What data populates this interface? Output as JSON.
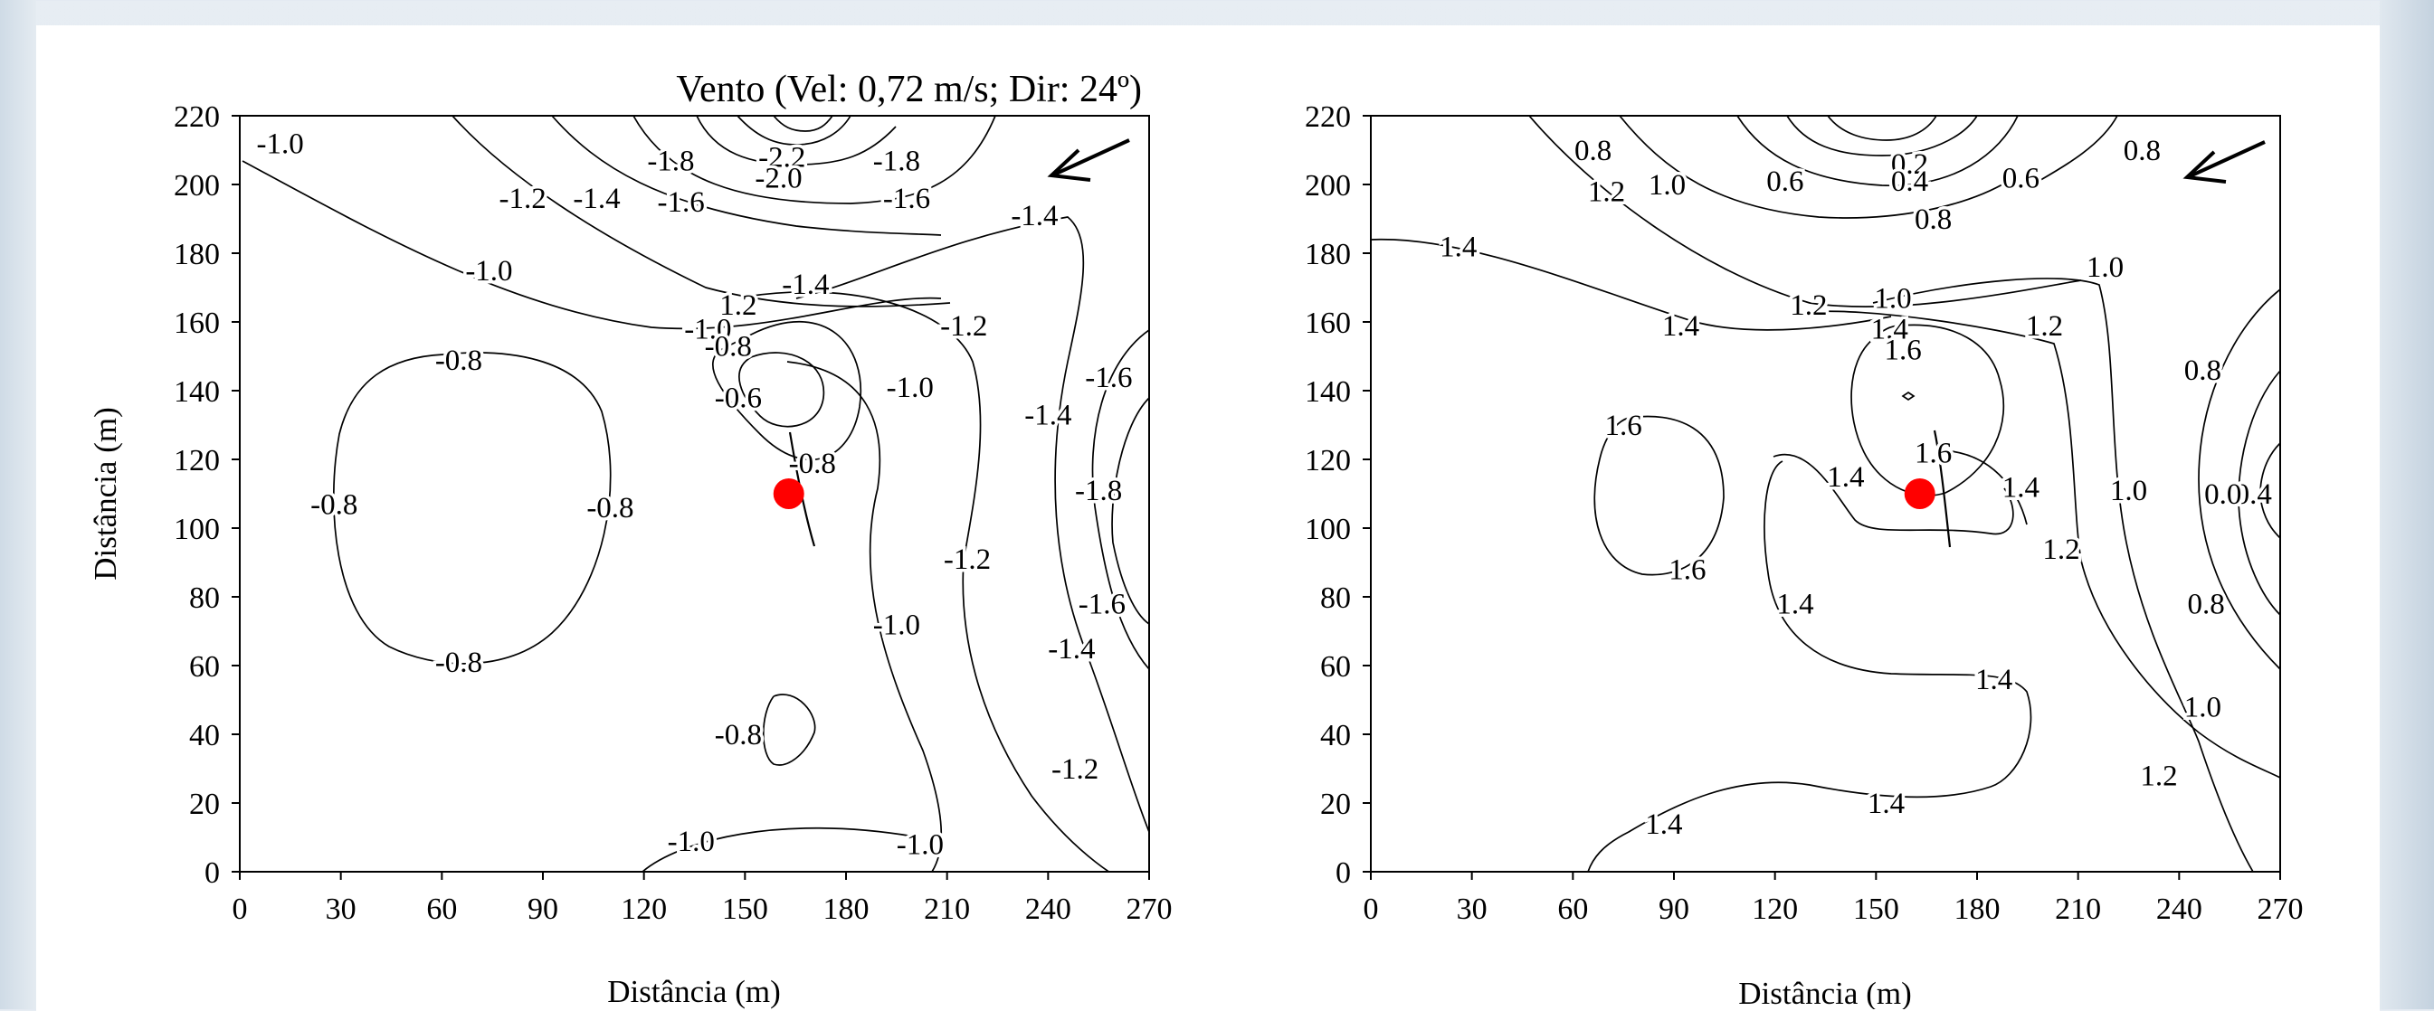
{
  "chart_data": [
    {
      "type": "contour",
      "title": "Vento (Vel: 0,72 m/s; Dir: 24º)",
      "xlabel": "Distância (m)",
      "ylabel": "Distância (m)",
      "xlim": [
        0,
        270
      ],
      "ylim": [
        0,
        220
      ],
      "xticks": [
        "0",
        "30",
        "60",
        "90",
        "120",
        "150",
        "180",
        "210",
        "240",
        "270"
      ],
      "yticks": [
        "0",
        "20",
        "40",
        "60",
        "80",
        "100",
        "120",
        "140",
        "160",
        "180",
        "200",
        "220"
      ],
      "wind_direction_deg": 24,
      "marker": {
        "x": 163,
        "y": 110,
        "color": "#ff0000"
      },
      "contour_labels": [
        {
          "text": "-1.0",
          "x": 12,
          "y": 212
        },
        {
          "text": "-1.8",
          "x": 128,
          "y": 207
        },
        {
          "text": "-2.2",
          "x": 161,
          "y": 208
        },
        {
          "text": "-2.0",
          "x": 160,
          "y": 202
        },
        {
          "text": "-1.8",
          "x": 195,
          "y": 207
        },
        {
          "text": "-1.2",
          "x": 84,
          "y": 196
        },
        {
          "text": "-1.4",
          "x": 106,
          "y": 196
        },
        {
          "text": "-1.6",
          "x": 131,
          "y": 195
        },
        {
          "text": "-1.6",
          "x": 198,
          "y": 196
        },
        {
          "text": "-1.4",
          "x": 236,
          "y": 191
        },
        {
          "text": "-1.0",
          "x": 74,
          "y": 175
        },
        {
          "text": "-1.4",
          "x": 168,
          "y": 171
        },
        {
          "text": "1.2",
          "x": 148,
          "y": 165
        },
        {
          "text": "-1.0",
          "x": 139,
          "y": 158
        },
        {
          "text": "-1.2",
          "x": 215,
          "y": 159
        },
        {
          "text": "-0.8",
          "x": 145,
          "y": 153
        },
        {
          "text": "-0.8",
          "x": 65,
          "y": 149
        },
        {
          "text": "-0.6",
          "x": 148,
          "y": 138
        },
        {
          "text": "-1.0",
          "x": 199,
          "y": 141
        },
        {
          "text": "-1.6",
          "x": 258,
          "y": 144
        },
        {
          "text": "-1.4",
          "x": 240,
          "y": 133
        },
        {
          "text": "-0.8",
          "x": 170,
          "y": 119
        },
        {
          "text": "-0.8",
          "x": 28,
          "y": 107
        },
        {
          "text": "-0.8",
          "x": 110,
          "y": 106
        },
        {
          "text": "-1.8",
          "x": 255,
          "y": 111
        },
        {
          "text": "-1.2",
          "x": 216,
          "y": 91
        },
        {
          "text": "-1.6",
          "x": 256,
          "y": 78
        },
        {
          "text": "-0.8",
          "x": 65,
          "y": 61
        },
        {
          "text": "-1.0",
          "x": 195,
          "y": 72
        },
        {
          "text": "-1.4",
          "x": 247,
          "y": 65
        },
        {
          "text": "-0.8",
          "x": 148,
          "y": 40
        },
        {
          "text": "-1.2",
          "x": 248,
          "y": 30
        },
        {
          "text": "-1.0",
          "x": 134,
          "y": 9
        },
        {
          "text": "-1.0",
          "x": 202,
          "y": 8
        }
      ]
    },
    {
      "type": "contour",
      "xlabel": "Distância (m)",
      "xlim": [
        0,
        270
      ],
      "ylim": [
        0,
        220
      ],
      "xticks": [
        "0",
        "30",
        "60",
        "90",
        "120",
        "150",
        "180",
        "210",
        "240",
        "270"
      ],
      "yticks": [
        "0",
        "20",
        "40",
        "60",
        "80",
        "100",
        "120",
        "140",
        "160",
        "180",
        "200",
        "220"
      ],
      "marker": {
        "x": 163,
        "y": 110,
        "color": "#ff0000"
      },
      "contour_labels": [
        {
          "text": "0.8",
          "x": 66,
          "y": 210
        },
        {
          "text": "0.2",
          "x": 160,
          "y": 206
        },
        {
          "text": "0.4",
          "x": 160,
          "y": 201
        },
        {
          "text": "0.8",
          "x": 229,
          "y": 210
        },
        {
          "text": "1.2",
          "x": 70,
          "y": 198
        },
        {
          "text": "1.0",
          "x": 88,
          "y": 200
        },
        {
          "text": "0.6",
          "x": 123,
          "y": 201
        },
        {
          "text": "0.6",
          "x": 193,
          "y": 202
        },
        {
          "text": "0.8",
          "x": 167,
          "y": 190
        },
        {
          "text": "1.4",
          "x": 26,
          "y": 182
        },
        {
          "text": "1.0",
          "x": 218,
          "y": 176
        },
        {
          "text": "1.2",
          "x": 130,
          "y": 165
        },
        {
          "text": "1.0",
          "x": 155,
          "y": 167
        },
        {
          "text": "1.4",
          "x": 92,
          "y": 159
        },
        {
          "text": "1.4",
          "x": 154,
          "y": 158
        },
        {
          "text": "1.2",
          "x": 200,
          "y": 159
        },
        {
          "text": "1.6",
          "x": 158,
          "y": 152
        },
        {
          "text": "0.8",
          "x": 247,
          "y": 146
        },
        {
          "text": "1.6",
          "x": 75,
          "y": 130
        },
        {
          "text": "1.6",
          "x": 167,
          "y": 122
        },
        {
          "text": "1.4",
          "x": 141,
          "y": 115
        },
        {
          "text": "1.4",
          "x": 193,
          "y": 112
        },
        {
          "text": "1.0",
          "x": 225,
          "y": 111
        },
        {
          "text": "0.4",
          "x": 262,
          "y": 110
        },
        {
          "text": "0.0",
          "x": 253,
          "y": 110
        },
        {
          "text": "1.2",
          "x": 205,
          "y": 94
        },
        {
          "text": "1.6",
          "x": 94,
          "y": 88
        },
        {
          "text": "1.4",
          "x": 126,
          "y": 78
        },
        {
          "text": "0.8",
          "x": 248,
          "y": 78
        },
        {
          "text": "1.4",
          "x": 185,
          "y": 56
        },
        {
          "text": "1.0",
          "x": 247,
          "y": 48
        },
        {
          "text": "1.2",
          "x": 234,
          "y": 28
        },
        {
          "text": "1.4",
          "x": 153,
          "y": 20
        },
        {
          "text": "1.4",
          "x": 87,
          "y": 14
        }
      ]
    }
  ]
}
